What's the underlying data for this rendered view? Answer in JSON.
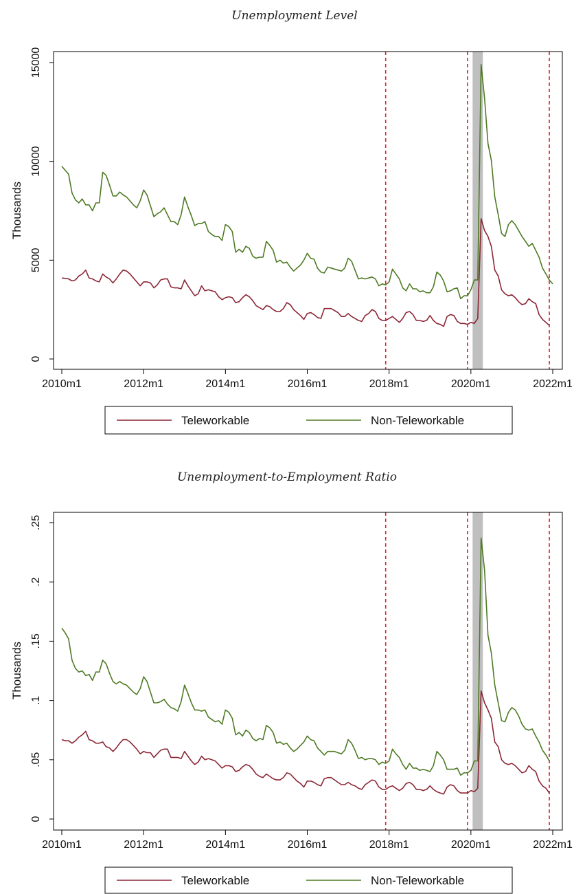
{
  "colors": {
    "teleworkable": "#8B2635",
    "non_teleworkable": "#4E7A24",
    "vline": "#E8202A",
    "shade": "#BFBFBF"
  },
  "chart_data": [
    {
      "type": "line",
      "title": "Unemployment Level",
      "ylabel": "Thousands",
      "xlabel": "",
      "ylim": [
        0,
        15000
      ],
      "yticks": [
        "0",
        "5000",
        "10000",
        "15000"
      ],
      "yticks_values": [
        0,
        5000,
        10000,
        15000
      ],
      "xticks": [
        "2010m1",
        "2012m1",
        "2014m1",
        "2016m1",
        "2018m1",
        "2020m1",
        "2022m1"
      ],
      "x_start": "2010m1",
      "x_end": "2021m12",
      "vlines": [
        "2017m12",
        "2019m12",
        "2021m12"
      ],
      "shaded_region": [
        "2020m2",
        "2020m4"
      ],
      "legend_position": "bottom",
      "grid": false,
      "series": [
        {
          "name": "Teleworkable",
          "values": [
            4100,
            4080,
            4050,
            3950,
            4000,
            4200,
            4300,
            4500,
            4100,
            4050,
            3950,
            3900,
            4300,
            4150,
            4050,
            3850,
            4050,
            4300,
            4500,
            4450,
            4300,
            4100,
            3900,
            3700,
            3900,
            3900,
            3850,
            3600,
            3750,
            4000,
            4050,
            4050,
            3650,
            3600,
            3600,
            3550,
            4000,
            3700,
            3450,
            3200,
            3300,
            3700,
            3450,
            3500,
            3450,
            3400,
            3150,
            3000,
            3100,
            3150,
            3100,
            2850,
            2900,
            3100,
            3250,
            3150,
            2950,
            2700,
            2600,
            2500,
            2700,
            2650,
            2500,
            2400,
            2400,
            2550,
            2850,
            2750,
            2500,
            2350,
            2200,
            2000,
            2300,
            2350,
            2250,
            2100,
            2050,
            2550,
            2550,
            2550,
            2450,
            2350,
            2150,
            2150,
            2300,
            2150,
            2050,
            1950,
            1900,
            2200,
            2300,
            2500,
            2400,
            2050,
            1950,
            1950,
            2050,
            2150,
            2000,
            1850,
            2050,
            2350,
            2400,
            2250,
            1950,
            1950,
            1900,
            1950,
            2200,
            1950,
            1800,
            1750,
            1650,
            2150,
            2250,
            2200,
            1900,
            1800,
            1800,
            1750,
            1850,
            1800,
            2050,
            7100,
            6500,
            6200,
            5700,
            4500,
            4200,
            3500,
            3300,
            3200,
            3250,
            3100,
            2900,
            2750,
            2800,
            3050,
            2900,
            2800,
            2250,
            2000,
            1850,
            1700
          ]
        },
        {
          "name": "Non-Teleworkable",
          "values": [
            9750,
            9550,
            9350,
            8400,
            8050,
            7900,
            8100,
            7800,
            7800,
            7500,
            7900,
            7900,
            9450,
            9300,
            8800,
            8250,
            8250,
            8450,
            8300,
            8200,
            8000,
            7800,
            7650,
            8000,
            8550,
            8300,
            7750,
            7200,
            7350,
            7450,
            7650,
            7300,
            6950,
            6950,
            6800,
            7300,
            8200,
            7700,
            7250,
            6750,
            6850,
            6850,
            6950,
            6450,
            6300,
            6200,
            6200,
            6000,
            6800,
            6700,
            6450,
            5400,
            5550,
            5400,
            5700,
            5600,
            5200,
            5100,
            5150,
            5150,
            5950,
            5750,
            5500,
            4900,
            5000,
            4850,
            4900,
            4650,
            4450,
            4600,
            4750,
            5000,
            5350,
            5100,
            5050,
            4600,
            4400,
            4350,
            4650,
            4600,
            4550,
            4500,
            4450,
            4600,
            5100,
            4950,
            4500,
            4050,
            4100,
            4050,
            4100,
            4150,
            4050,
            3700,
            3800,
            3750,
            3900,
            4550,
            4300,
            4050,
            3600,
            3450,
            3800,
            3550,
            3550,
            3400,
            3450,
            3350,
            3350,
            3650,
            4400,
            4250,
            3950,
            3400,
            3450,
            3550,
            3600,
            3050,
            3200,
            3200,
            3500,
            4000,
            4000,
            14900,
            13200,
            10900,
            10050,
            8200,
            7300,
            6350,
            6200,
            6800,
            7000,
            6800,
            6500,
            6200,
            5950,
            5700,
            5850,
            5500,
            5150,
            4600,
            4300,
            4000,
            3800
          ]
        }
      ]
    },
    {
      "type": "line",
      "title": "Unemployment-to-Employment Ratio",
      "ylabel": "Thousands",
      "xlabel": "",
      "ylim": [
        0,
        0.25
      ],
      "yticks": [
        "0",
        ".05",
        ".1",
        ".15",
        ".2",
        ".25"
      ],
      "yticks_values": [
        0,
        0.05,
        0.1,
        0.15,
        0.2,
        0.25
      ],
      "xticks": [
        "2010m1",
        "2012m1",
        "2014m1",
        "2016m1",
        "2018m1",
        "2020m1",
        "2022m1"
      ],
      "x_start": "2010m1",
      "x_end": "2021m12",
      "vlines": [
        "2017m12",
        "2019m12",
        "2021m12"
      ],
      "shaded_region": [
        "2020m2",
        "2020m4"
      ],
      "legend_position": "bottom",
      "grid": false,
      "series": [
        {
          "name": "Teleworkable",
          "values": [
            0.067,
            0.066,
            0.066,
            0.064,
            0.066,
            0.069,
            0.071,
            0.074,
            0.067,
            0.066,
            0.064,
            0.064,
            0.065,
            0.061,
            0.06,
            0.057,
            0.06,
            0.064,
            0.067,
            0.067,
            0.065,
            0.062,
            0.059,
            0.055,
            0.057,
            0.056,
            0.056,
            0.052,
            0.055,
            0.058,
            0.059,
            0.059,
            0.052,
            0.052,
            0.052,
            0.051,
            0.057,
            0.053,
            0.049,
            0.046,
            0.048,
            0.053,
            0.05,
            0.051,
            0.05,
            0.049,
            0.046,
            0.043,
            0.045,
            0.045,
            0.044,
            0.04,
            0.041,
            0.044,
            0.046,
            0.045,
            0.042,
            0.038,
            0.036,
            0.035,
            0.038,
            0.036,
            0.034,
            0.033,
            0.033,
            0.035,
            0.039,
            0.038,
            0.035,
            0.032,
            0.03,
            0.027,
            0.032,
            0.032,
            0.031,
            0.029,
            0.028,
            0.034,
            0.035,
            0.035,
            0.033,
            0.031,
            0.029,
            0.029,
            0.031,
            0.029,
            0.028,
            0.026,
            0.025,
            0.029,
            0.031,
            0.033,
            0.032,
            0.027,
            0.025,
            0.025,
            0.027,
            0.028,
            0.026,
            0.024,
            0.026,
            0.03,
            0.031,
            0.029,
            0.025,
            0.025,
            0.024,
            0.025,
            0.028,
            0.025,
            0.023,
            0.022,
            0.021,
            0.027,
            0.029,
            0.028,
            0.024,
            0.022,
            0.022,
            0.022,
            0.024,
            0.023,
            0.026,
            0.108,
            0.098,
            0.092,
            0.085,
            0.065,
            0.061,
            0.05,
            0.047,
            0.046,
            0.047,
            0.045,
            0.042,
            0.039,
            0.04,
            0.045,
            0.042,
            0.04,
            0.032,
            0.028,
            0.026,
            0.022
          ]
        },
        {
          "name": "Non-Teleworkable",
          "values": [
            0.161,
            0.157,
            0.152,
            0.134,
            0.127,
            0.124,
            0.125,
            0.121,
            0.122,
            0.117,
            0.124,
            0.124,
            0.134,
            0.131,
            0.123,
            0.116,
            0.114,
            0.116,
            0.114,
            0.113,
            0.11,
            0.107,
            0.105,
            0.11,
            0.12,
            0.116,
            0.107,
            0.098,
            0.098,
            0.099,
            0.101,
            0.097,
            0.094,
            0.093,
            0.091,
            0.099,
            0.113,
            0.106,
            0.098,
            0.092,
            0.092,
            0.091,
            0.092,
            0.086,
            0.084,
            0.082,
            0.083,
            0.08,
            0.092,
            0.09,
            0.085,
            0.071,
            0.073,
            0.07,
            0.075,
            0.073,
            0.068,
            0.066,
            0.068,
            0.067,
            0.079,
            0.077,
            0.073,
            0.064,
            0.065,
            0.063,
            0.064,
            0.06,
            0.057,
            0.059,
            0.062,
            0.065,
            0.07,
            0.067,
            0.066,
            0.06,
            0.057,
            0.054,
            0.057,
            0.057,
            0.057,
            0.056,
            0.055,
            0.058,
            0.067,
            0.064,
            0.058,
            0.051,
            0.052,
            0.05,
            0.051,
            0.051,
            0.05,
            0.046,
            0.048,
            0.047,
            0.049,
            0.059,
            0.055,
            0.052,
            0.046,
            0.042,
            0.047,
            0.043,
            0.043,
            0.041,
            0.042,
            0.041,
            0.04,
            0.045,
            0.057,
            0.054,
            0.05,
            0.042,
            0.042,
            0.042,
            0.043,
            0.037,
            0.039,
            0.039,
            0.041,
            0.049,
            0.049,
            0.237,
            0.21,
            0.155,
            0.14,
            0.113,
            0.098,
            0.083,
            0.082,
            0.09,
            0.094,
            0.092,
            0.087,
            0.08,
            0.076,
            0.075,
            0.076,
            0.07,
            0.065,
            0.058,
            0.054,
            0.049
          ]
        }
      ]
    }
  ]
}
